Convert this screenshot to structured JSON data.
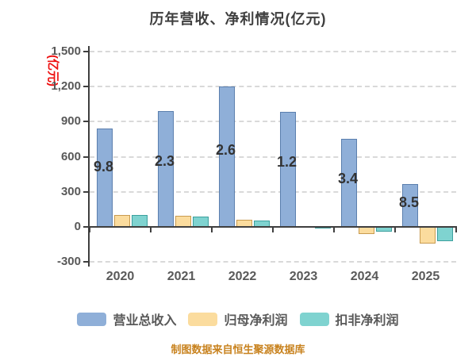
{
  "title": "历年营收、净利情况(亿元)",
  "y_axis": {
    "label": "(亿元)",
    "label_color": "#ee1111",
    "tick_labels": [
      "1,500",
      "1,200",
      "900",
      "600",
      "300",
      "0",
      "-300"
    ],
    "tick_values": [
      1500,
      1200,
      900,
      600,
      300,
      0,
      -300
    ]
  },
  "x_axis": {
    "labels": [
      "2020",
      "2021",
      "2022",
      "2023",
      "2024",
      "2025"
    ]
  },
  "legend": {
    "items": [
      {
        "label": "营业总收入",
        "color": "#8fafd8",
        "border": "#5b7fae"
      },
      {
        "label": "归母净利润",
        "color": "#fbdc9e",
        "border": "#c89b50"
      },
      {
        "label": "扣非净利润",
        "color": "#7fd3d0",
        "border": "#3ca09e"
      }
    ]
  },
  "footer": {
    "text": "制图数据来自恒生聚源数据库",
    "color": "#c8821e"
  },
  "chart_data": {
    "type": "bar",
    "title": "历年营收、净利情况(亿元)",
    "categories": [
      "2020",
      "2021",
      "2022",
      "2023",
      "2024",
      "2025"
    ],
    "series": [
      {
        "name": "营业总收入",
        "key": "total-revenue",
        "color": "#8fafd8",
        "border": "#5b7fae",
        "values": [
          839.8,
          992.3,
          1202.6,
          981.2,
          753.4,
          368.5
        ]
      },
      {
        "name": "归母净利润",
        "key": "net-profit",
        "color": "#fbdc9e",
        "border": "#c89b50",
        "values": [
          104,
          94,
          61,
          10,
          -61,
          -140
        ]
      },
      {
        "name": "扣非净利润",
        "key": "deducted-net-profit",
        "color": "#7fd3d0",
        "border": "#3ca09e",
        "values": [
          100,
          86,
          52,
          -8,
          -41,
          -124
        ]
      }
    ],
    "visible_bar_labels": [
      "9.8",
      "2.3",
      "2.6",
      "1.2",
      "3.4",
      "8.5"
    ],
    "visible_bar_label_y": [
      211,
      204,
      190,
      205,
      226,
      256
    ],
    "ylabel": "(亿元)",
    "ylim": [
      -300,
      1500
    ],
    "grid": "horizontal-dashed",
    "legend_position": "bottom"
  }
}
